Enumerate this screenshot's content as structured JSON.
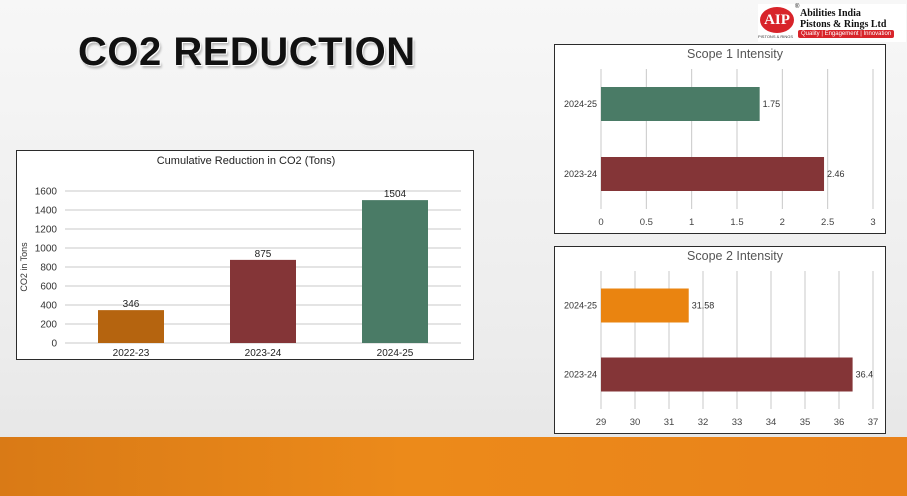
{
  "page_title": "CO2 REDUCTION",
  "logo": {
    "mark": "AIP",
    "reg": "®",
    "name_line1": "Abilities India",
    "name_line2": "Pistons & Rings Ltd",
    "tagline": "Quality | Engagement | Innovation",
    "sub": "PISTONS & RINGS"
  },
  "colors": {
    "orange": "#ea8410",
    "dark_orange": "#b5640f",
    "maroon": "#843537",
    "green": "#4a7b66",
    "footer": "#ec8a1a"
  },
  "chart_data": [
    {
      "type": "bar",
      "title": "Cumulative Reduction in CO2 (Tons)",
      "categories": [
        "2022-23",
        "2023-24",
        "2024-25"
      ],
      "values": [
        346,
        875,
        1504
      ],
      "bar_colors": [
        "#b5640f",
        "#843537",
        "#4a7b66"
      ],
      "ylabel": "CO2 in Tons",
      "xlabel": "",
      "ylim": [
        0,
        1600
      ],
      "yticks": [
        0,
        200,
        400,
        600,
        800,
        1000,
        1200,
        1400,
        1600
      ],
      "grid": true
    },
    {
      "type": "bar",
      "orientation": "horizontal",
      "title": "Scope 1 Intensity",
      "categories": [
        "2024-25",
        "2023-24"
      ],
      "values": [
        1.75,
        2.46
      ],
      "value_labels": [
        "1.75",
        "2.46"
      ],
      "bar_colors": [
        "#4a7b66",
        "#843537"
      ],
      "xlim": [
        0,
        3
      ],
      "xticks": [
        0,
        0.5,
        1,
        1.5,
        2,
        2.5,
        3
      ],
      "xtick_labels": [
        "0",
        "0.5",
        "1",
        "1.5",
        "2",
        "2.5",
        "3"
      ],
      "grid": true
    },
    {
      "type": "bar",
      "orientation": "horizontal",
      "title": "Scope 2 Intensity",
      "categories": [
        "2024-25",
        "2023-24"
      ],
      "values": [
        31.58,
        36.4
      ],
      "value_labels": [
        "31.58",
        "36.4"
      ],
      "bar_colors": [
        "#ea8410",
        "#843537"
      ],
      "xlim": [
        29,
        37
      ],
      "xticks": [
        29,
        30,
        31,
        32,
        33,
        34,
        35,
        36,
        37
      ],
      "xtick_labels": [
        "29",
        "30",
        "31",
        "32",
        "33",
        "34",
        "35",
        "36",
        "37"
      ],
      "grid": true
    }
  ]
}
